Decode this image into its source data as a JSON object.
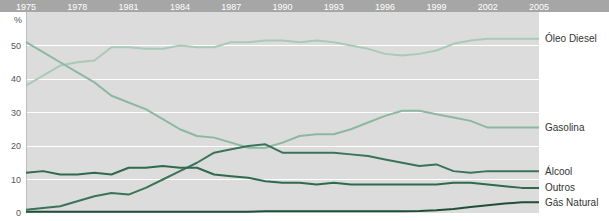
{
  "chart_data": {
    "type": "line",
    "y_label": "%",
    "x": [
      1975,
      1976,
      1977,
      1978,
      1979,
      1980,
      1981,
      1982,
      1983,
      1984,
      1985,
      1986,
      1987,
      1988,
      1989,
      1990,
      1991,
      1992,
      1993,
      1994,
      1995,
      1996,
      1997,
      1998,
      1999,
      2000,
      2001,
      2002,
      2003,
      2004,
      2005
    ],
    "xlim": [
      1975,
      2005
    ],
    "xticks": [
      1975,
      1978,
      1981,
      1984,
      1987,
      1990,
      1993,
      1996,
      1999,
      2002,
      2005
    ],
    "ylim": [
      0,
      60
    ],
    "yticks": [
      0,
      10,
      20,
      30,
      40,
      50
    ],
    "grid": true,
    "series": [
      {
        "name": "Óleo Diesel",
        "color": "#a9c9b9",
        "values": [
          38,
          41,
          44,
          45,
          45.5,
          49.5,
          49.5,
          49,
          49,
          50,
          49.5,
          49.5,
          51,
          51,
          51.5,
          51.5,
          51,
          51.5,
          51,
          50,
          49,
          47.5,
          47,
          47.5,
          48.5,
          50.5,
          51.5,
          52,
          52,
          52,
          52
        ]
      },
      {
        "name": "Gasolina",
        "color": "#8cb8a2",
        "values": [
          51,
          48,
          45,
          42,
          39,
          35,
          33,
          31,
          28,
          25,
          23,
          22.5,
          21,
          19.5,
          19.5,
          21,
          23,
          23.5,
          23.5,
          25,
          27,
          29,
          30.5,
          30.5,
          29.5,
          28.5,
          27.5,
          25.5,
          25.5,
          25.5,
          25.5
        ]
      },
      {
        "name": "Álcool",
        "color": "#3b7358",
        "values": [
          1,
          1.5,
          2,
          3.5,
          5,
          6,
          5.5,
          7.5,
          10,
          12.5,
          15,
          18,
          19,
          20,
          20.5,
          18,
          18,
          18,
          18,
          17.5,
          17,
          16,
          15,
          14,
          14.5,
          12.5,
          12,
          12.5,
          12.5,
          12.5,
          12.5
        ]
      },
      {
        "name": "Outros",
        "color": "#2f6a4c",
        "values": [
          12,
          12.5,
          11.5,
          11.5,
          12,
          11.5,
          13.5,
          13.5,
          14,
          13.5,
          13.5,
          11.5,
          11,
          10.5,
          9.5,
          9,
          9,
          8.5,
          9,
          8.5,
          8.5,
          8.5,
          8.5,
          8.5,
          8.5,
          9,
          9,
          8.5,
          8,
          7.5,
          7.5
        ]
      },
      {
        "name": "Gás Natural",
        "color": "#1f4f38",
        "values": [
          0.4,
          0.4,
          0.4,
          0.4,
          0.4,
          0.4,
          0.4,
          0.4,
          0.4,
          0.4,
          0.4,
          0.4,
          0.4,
          0.4,
          0.5,
          0.5,
          0.5,
          0.5,
          0.5,
          0.5,
          0.5,
          0.5,
          0.5,
          0.6,
          0.8,
          1.2,
          1.8,
          2.3,
          2.8,
          3.2,
          3.2
        ]
      }
    ]
  }
}
